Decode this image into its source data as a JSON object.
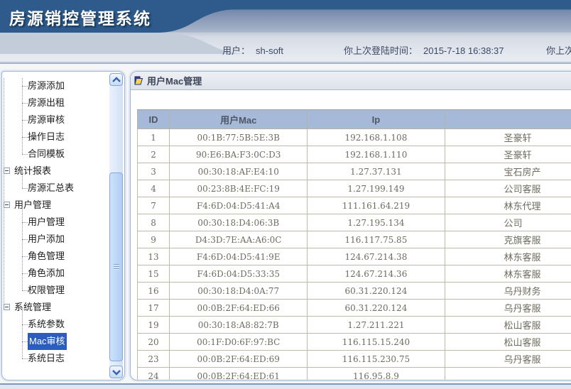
{
  "app": {
    "title": "房源销控管理系统"
  },
  "topbar": {
    "user_label": "用户：",
    "user_value": "sh-soft",
    "last_login_label": "你上次登陆时间：",
    "last_login_value": "2015-7-18 16:38:37",
    "clipped_right_text": "你上次"
  },
  "sidebar": {
    "items": [
      {
        "label": "房源添加",
        "type": "leaf"
      },
      {
        "label": "房源出租",
        "type": "leaf"
      },
      {
        "label": "房源审核",
        "type": "leaf"
      },
      {
        "label": "操作日志",
        "type": "leaf"
      },
      {
        "label": "合同模板",
        "type": "leaf"
      },
      {
        "label": "统计报表",
        "type": "parent"
      },
      {
        "label": "房源汇总表",
        "type": "leaf"
      },
      {
        "label": "用户管理",
        "type": "parent"
      },
      {
        "label": "用户管理",
        "type": "leaf"
      },
      {
        "label": "用户添加",
        "type": "leaf"
      },
      {
        "label": "角色管理",
        "type": "leaf"
      },
      {
        "label": "角色添加",
        "type": "leaf"
      },
      {
        "label": "权限管理",
        "type": "leaf"
      },
      {
        "label": "系统管理",
        "type": "parent"
      },
      {
        "label": "系统参数",
        "type": "leaf"
      },
      {
        "label": "Mac审核",
        "type": "leaf",
        "selected": true
      },
      {
        "label": "系统日志",
        "type": "leaf"
      }
    ]
  },
  "main": {
    "panel_title": "用户Mac管理",
    "table": {
      "columns": [
        "ID",
        "用户Mac",
        "Ip",
        ""
      ],
      "rows": [
        {
          "id": "1",
          "mac": "00:1B:77:5B:5E:3B",
          "ip": "192.168.1.108",
          "note": "圣豪轩"
        },
        {
          "id": "2",
          "mac": "90:E6:BA:F3:0C:D3",
          "ip": "192.168.1.110",
          "note": "圣豪轩"
        },
        {
          "id": "3",
          "mac": "00:30:18:AF:E4:10",
          "ip": "1.27.37.131",
          "note": "宝石房产"
        },
        {
          "id": "4",
          "mac": "00:23:8B:4E:FC:19",
          "ip": "1.27.199.149",
          "note": "公司客服"
        },
        {
          "id": "7",
          "mac": "F4:6D:04:D5:41:A4",
          "ip": "111.161.64.219",
          "note": "林东代理"
        },
        {
          "id": "8",
          "mac": "00:30:18:D4:06:3B",
          "ip": "1.27.195.134",
          "note": "公司"
        },
        {
          "id": "9",
          "mac": "D4:3D:7E:AA:A6:0C",
          "ip": "116.117.75.85",
          "note": "克旗客服"
        },
        {
          "id": "13",
          "mac": "F4:6D:04:D5:41:9E",
          "ip": "124.67.214.38",
          "note": "林东客服"
        },
        {
          "id": "15",
          "mac": "F4:6D:04:D5:33:35",
          "ip": "124.67.214.36",
          "note": "林东客服"
        },
        {
          "id": "16",
          "mac": "00:30:18:D4:0A:77",
          "ip": "60.31.220.124",
          "note": "乌丹财务"
        },
        {
          "id": "17",
          "mac": "00:0B:2F:64:ED:66",
          "ip": "60.31.220.124",
          "note": "乌丹客服"
        },
        {
          "id": "19",
          "mac": "00:30:18:A8:82:7B",
          "ip": "1.27.211.221",
          "note": "松山客服"
        },
        {
          "id": "20",
          "mac": "00:1F:D0:6F:97:BC",
          "ip": "116.115.15.240",
          "note": "松山客服"
        },
        {
          "id": "23",
          "mac": "00:0B:2F:64:ED:69",
          "ip": "116.115.230.75",
          "note": "乌丹客服"
        },
        {
          "id": "24",
          "mac": "00:0B:2F:64:ED:61",
          "ip": "116.95.8.9",
          "note": ""
        }
      ]
    }
  },
  "colors": {
    "header_navy": "#2e5b8b",
    "table_header_bg": "#a6b9d8",
    "selected_item_bg": "#2b5dbe",
    "grid_line": "#beb9a8",
    "panel_border": "#a4b6d6"
  }
}
